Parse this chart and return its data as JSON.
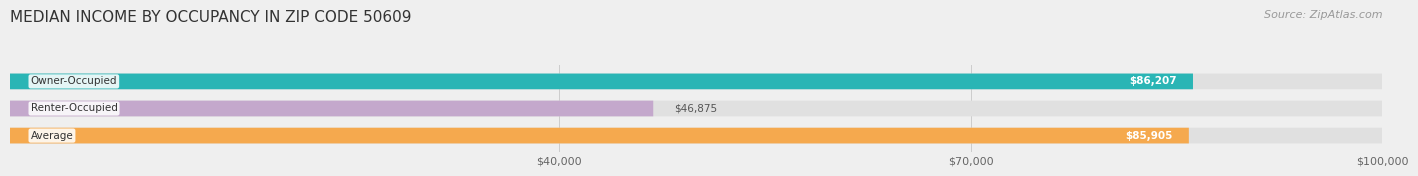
{
  "title": "MEDIAN INCOME BY OCCUPANCY IN ZIP CODE 50609",
  "source_text": "Source: ZipAtlas.com",
  "categories": [
    "Owner-Occupied",
    "Renter-Occupied",
    "Average"
  ],
  "values": [
    86207,
    46875,
    85905
  ],
  "bar_colors": [
    "#2ab5b5",
    "#c4a8cc",
    "#f5a94e"
  ],
  "label_colors": [
    "#ffffff",
    "#555555",
    "#ffffff"
  ],
  "value_labels": [
    "$86,207",
    "$46,875",
    "$85,905"
  ],
  "xlim": [
    0,
    100000
  ],
  "xticks": [
    40000,
    70000,
    100000
  ],
  "xtick_labels": [
    "$40,000",
    "$70,000",
    "$100,000"
  ],
  "background_color": "#efefef",
  "bar_background_color": "#e0e0e0",
  "title_fontsize": 11,
  "source_fontsize": 8,
  "bar_height": 0.58
}
